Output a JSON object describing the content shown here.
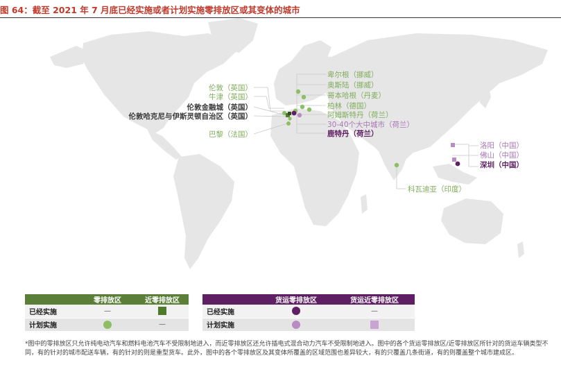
{
  "title": "图 64：截至 2021 年 7 月底已经实施或者计划实施零排放区或其变体的城市",
  "colors": {
    "green_light": "#8cbf63",
    "green_dark": "#4f7a2c",
    "purple_dark": "#5e1f63",
    "purple_light": "#b98ac4",
    "map_land": "#e6e6e6"
  },
  "cities": [
    {
      "label": "伦敦（英国）",
      "style": "green",
      "marker": "circle-green"
    },
    {
      "label": "牛津（英国）",
      "style": "green",
      "marker": "circle-green"
    },
    {
      "label": "伦敦金融城（英国）",
      "style": "dark",
      "marker": "square-green"
    },
    {
      "label": "伦敦哈克尼与伊斯灵顿自治区（英国）",
      "style": "dark",
      "marker": "square-green"
    },
    {
      "label": "巴黎（法国）",
      "style": "green",
      "marker": "circle-green"
    },
    {
      "label": "卑尔根（挪威）",
      "style": "green",
      "marker": "circle-green"
    },
    {
      "label": "奥斯陆（挪威）",
      "style": "green",
      "marker": "circle-green"
    },
    {
      "label": "哥本哈根（丹麦）",
      "style": "green",
      "marker": "circle-green"
    },
    {
      "label": "柏林（德国）",
      "style": "green",
      "marker": "circle-green"
    },
    {
      "label": "阿姆斯特丹（荷兰）",
      "style": "green",
      "marker": "circle-green"
    },
    {
      "label": "30-40个大中城市（荷兰）",
      "style": "purple",
      "marker": "circle-purple-light"
    },
    {
      "label": "鹿特丹（荷兰）",
      "style": "purple-dark",
      "marker": "circle-purple-dark"
    },
    {
      "label": "洛阳（中国）",
      "style": "purple",
      "marker": "square-purple-light"
    },
    {
      "label": "佛山（中国）",
      "style": "purple",
      "marker": "square-purple-light"
    },
    {
      "label": "深圳（中国）",
      "style": "purple-dark",
      "marker": "circle-purple-dark"
    },
    {
      "label": "科瓦迪亚（印度）",
      "style": "green",
      "marker": "circle-green"
    }
  ],
  "legend_left": {
    "headers": [
      "零排放区",
      "近零排放区"
    ],
    "rows": [
      {
        "label": "已经实施",
        "col1": "—",
        "col2_symbol": "square-green-dark"
      },
      {
        "label": "计划实施",
        "col1_symbol": "circle-green-light",
        "col2": "—"
      }
    ]
  },
  "legend_right": {
    "headers": [
      "货运零排放区",
      "货运近零排放区"
    ],
    "rows": [
      {
        "label": "已经实施",
        "col1_symbol": "circle-purple-dark",
        "col2": "—"
      },
      {
        "label": "计划实施",
        "col1_symbol": "circle-purple-light",
        "col2_symbol": "square-purple-light"
      }
    ]
  },
  "footnote": "*图中的零排放区只允许纯电动汽车和燃料电池汽车不受限制地进入，而近零排放区还允许插电式混合动力汽车不受限制地进入。图中的各个货运零排放区/近零排放区所针对的货运车辆类型不同，有的针对的城市配送车辆，有的针对的则是重型货车。此外，图中的各个零排放区及其变体所覆盖的区域范围也差异较大，有的只覆盖几条街道，有的则覆盖整个城市建成区。"
}
